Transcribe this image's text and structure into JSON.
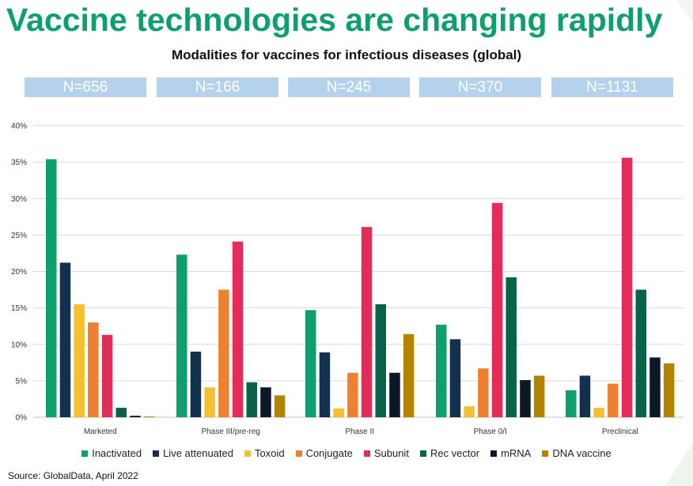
{
  "title": "Vaccine technologies are changing rapidly",
  "source": "Source: GlobalData, April 2022",
  "colors": {
    "title": "#0e9f6e",
    "nbox": "#b4d2ec"
  },
  "chart_data": {
    "type": "bar",
    "title": "Modalities for vaccines for infectious diseases (global)",
    "xlabel": "",
    "ylabel": "",
    "ylim": [
      0,
      40
    ],
    "ytick_step": 5,
    "ytick_suffix": "%",
    "grid": true,
    "legend_position": "bottom",
    "categories": [
      "Marketed",
      "Phase III/pre-reg",
      "Phase II",
      "Phase 0/I",
      "Preclinical"
    ],
    "group_counts": [
      "N=656",
      "N=166",
      "N=245",
      "N=370",
      "N=1131"
    ],
    "series": [
      {
        "name": "Inactivated",
        "color": "#0e9f6e",
        "values": [
          35.4,
          22.3,
          14.7,
          12.7,
          3.7
        ]
      },
      {
        "name": "Live attenuated",
        "color": "#14304f",
        "values": [
          21.2,
          9.0,
          8.9,
          10.7,
          5.7
        ]
      },
      {
        "name": "Toxoid",
        "color": "#f5c030",
        "values": [
          15.5,
          4.1,
          1.2,
          1.5,
          1.3
        ]
      },
      {
        "name": "Conjugate",
        "color": "#ec8231",
        "values": [
          13.0,
          17.5,
          6.1,
          6.7,
          4.6
        ]
      },
      {
        "name": "Subunit",
        "color": "#e42c5a",
        "values": [
          11.3,
          24.1,
          26.1,
          29.4,
          35.6
        ]
      },
      {
        "name": "Rec vector",
        "color": "#08634a",
        "values": [
          1.3,
          4.8,
          15.5,
          19.2,
          17.5
        ]
      },
      {
        "name": "mRNA",
        "color": "#0c1828",
        "values": [
          0.2,
          4.1,
          6.1,
          5.1,
          8.2
        ]
      },
      {
        "name": "DNA vaccine",
        "color": "#b28400",
        "values": [
          0.1,
          3.0,
          11.4,
          5.7,
          7.4
        ]
      }
    ]
  }
}
